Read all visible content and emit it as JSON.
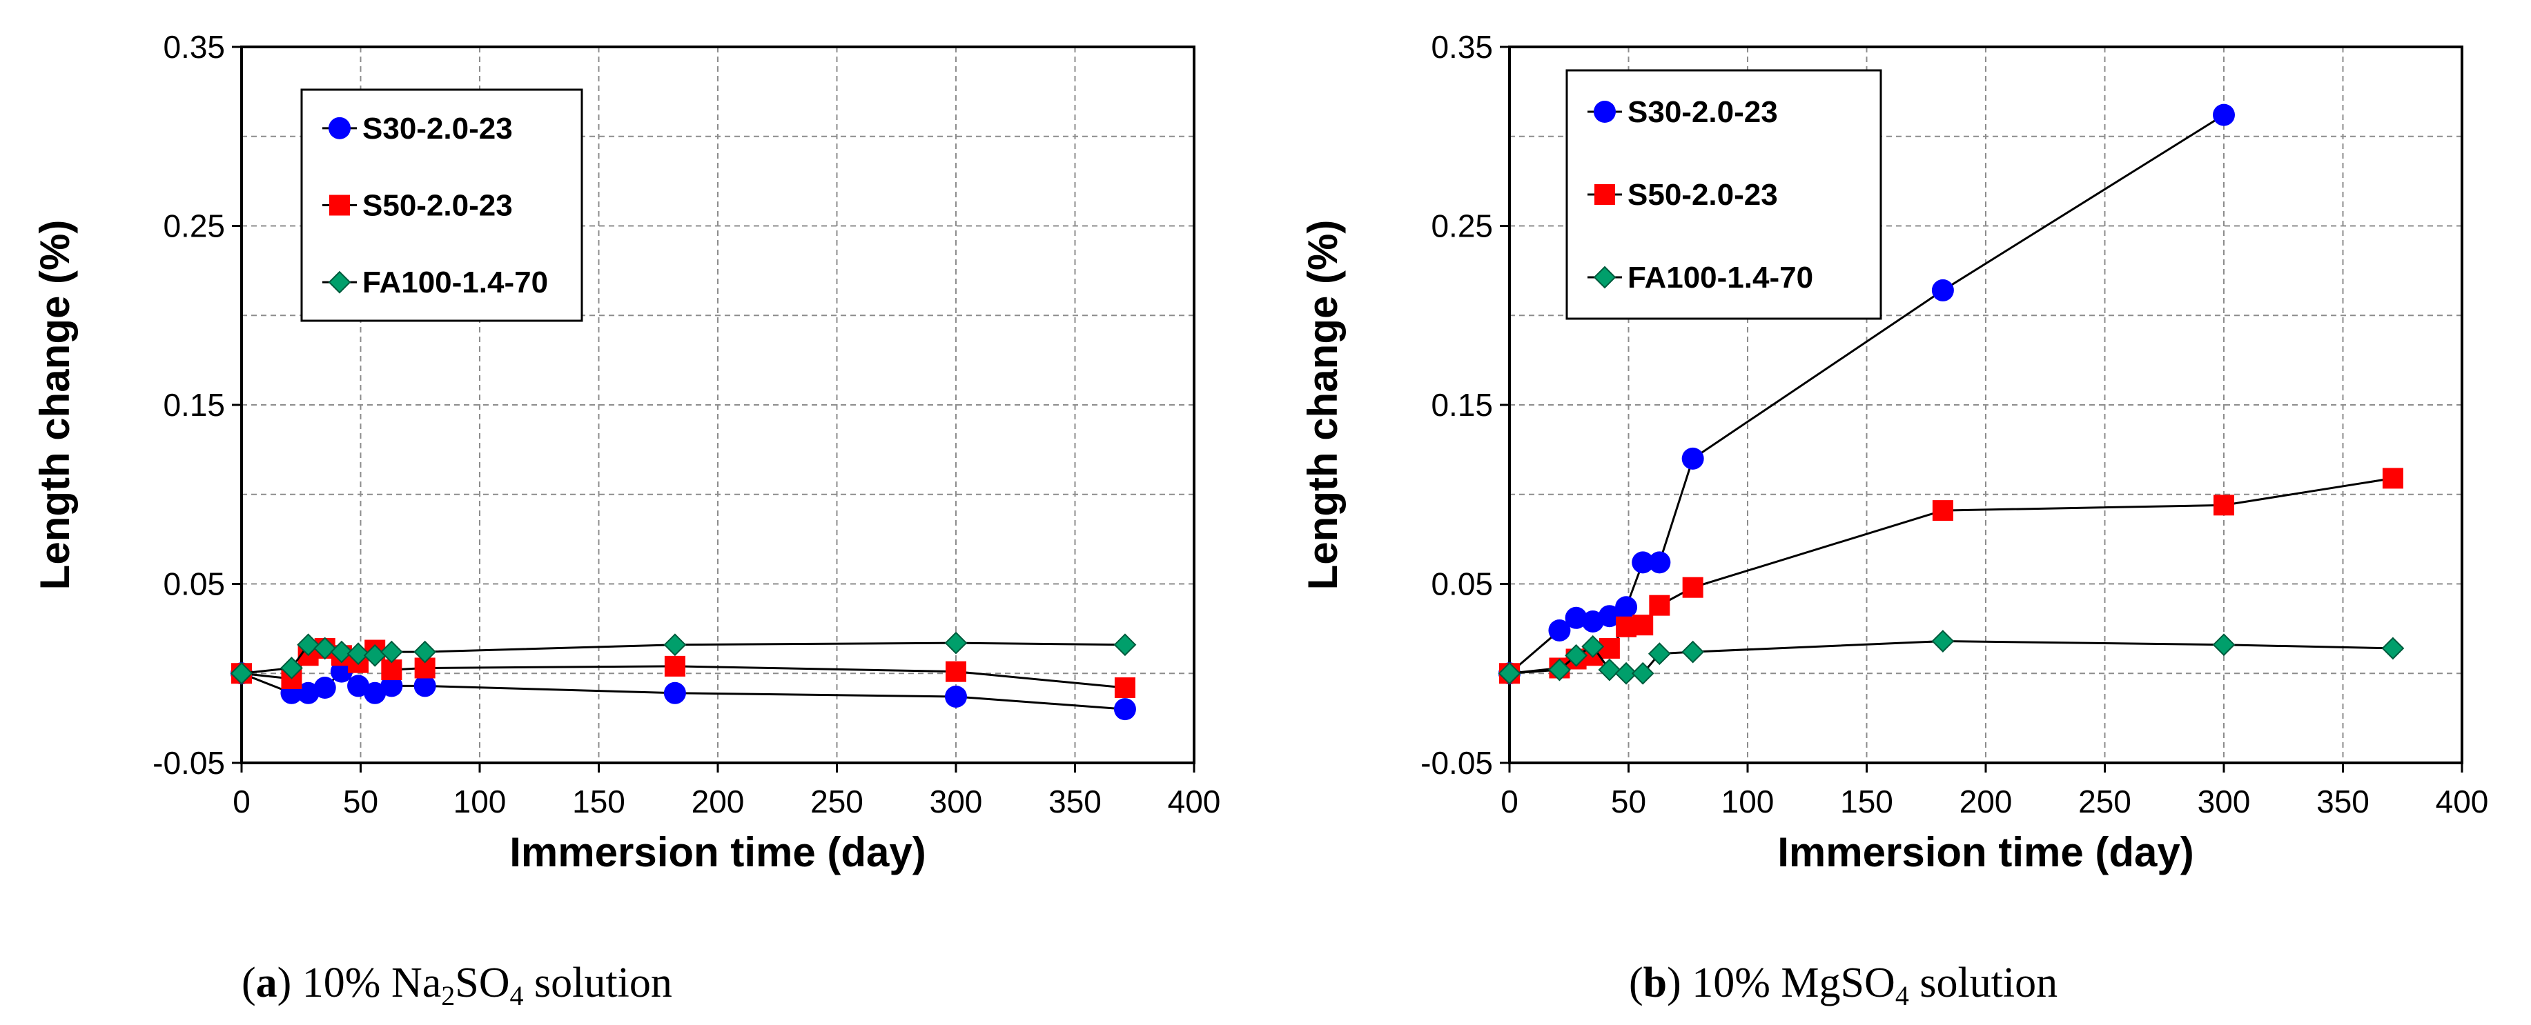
{
  "chart_data": [
    {
      "type": "line",
      "caption": {
        "label": "a",
        "text_before": "10% Na",
        "sub1": "2",
        "mid": "SO",
        "sub2": "4",
        "text_after": " solution"
      },
      "xlabel": "Immersion time (day)",
      "ylabel": "Length change (%)",
      "xlim": [
        0,
        400
      ],
      "ylim": [
        -0.05,
        0.35
      ],
      "xticks": [
        0,
        50,
        100,
        150,
        200,
        250,
        300,
        350,
        400
      ],
      "yticks": [
        -0.05,
        0.05,
        0.15,
        0.25,
        0.35
      ],
      "ytick_labels": [
        "-0.05",
        "0.05",
        "0.15",
        "0.25",
        "0.35"
      ],
      "grid": true,
      "legend_position": "top-left",
      "series": [
        {
          "name": "S30-2.0-23",
          "color": "#0000ff",
          "marker": "circle",
          "x": [
            0,
            21,
            28,
            35,
            42,
            49,
            56,
            63,
            77,
            182,
            300,
            371
          ],
          "y": [
            0.0,
            -0.011,
            -0.011,
            -0.008,
            0.001,
            -0.007,
            -0.011,
            -0.007,
            -0.007,
            -0.011,
            -0.013,
            -0.02
          ]
        },
        {
          "name": "S50-2.0-23",
          "color": "#ff0000",
          "marker": "square",
          "x": [
            0,
            21,
            28,
            35,
            42,
            49,
            56,
            63,
            77,
            182,
            300,
            371
          ],
          "y": [
            0.0,
            -0.003,
            0.01,
            0.014,
            0.01,
            0.006,
            0.013,
            0.002,
            0.003,
            0.004,
            0.001,
            -0.008
          ]
        },
        {
          "name": "FA100-1.4-70",
          "color": "#009f6b",
          "marker": "diamond",
          "x": [
            0,
            21,
            28,
            35,
            42,
            49,
            56,
            63,
            77,
            182,
            300,
            371
          ],
          "y": [
            0.0,
            0.003,
            0.016,
            0.014,
            0.012,
            0.011,
            0.01,
            0.012,
            0.012,
            0.016,
            0.017,
            0.016
          ]
        }
      ]
    },
    {
      "type": "line",
      "caption": {
        "label": "b",
        "text_before": "10% MgSO",
        "sub1": "",
        "mid": "",
        "sub2": "4",
        "text_after": " solution"
      },
      "xlabel": "Immersion time (day)",
      "ylabel": "Length change (%)",
      "xlim": [
        0,
        400
      ],
      "ylim": [
        -0.05,
        0.35
      ],
      "xticks": [
        0,
        50,
        100,
        150,
        200,
        250,
        300,
        350,
        400
      ],
      "yticks": [
        -0.05,
        0.05,
        0.15,
        0.25,
        0.35
      ],
      "ytick_labels": [
        "-0.05",
        "0.05",
        "0.15",
        "0.25",
        "0.35"
      ],
      "grid": true,
      "legend_position": "top-left",
      "series": [
        {
          "name": "S30-2.0-23",
          "color": "#0000ff",
          "marker": "circle",
          "x": [
            0,
            21,
            28,
            35,
            42,
            49,
            56,
            63,
            77,
            182,
            300
          ],
          "y": [
            0.0,
            0.024,
            0.031,
            0.029,
            0.032,
            0.037,
            0.062,
            0.062,
            0.12,
            0.214,
            0.312
          ]
        },
        {
          "name": "S50-2.0-23",
          "color": "#ff0000",
          "marker": "square",
          "x": [
            0,
            21,
            28,
            35,
            42,
            49,
            56,
            63,
            77,
            182,
            300,
            371
          ],
          "y": [
            0.0,
            0.003,
            0.008,
            0.01,
            0.014,
            0.026,
            0.027,
            0.038,
            0.048,
            0.091,
            0.094,
            0.109
          ]
        },
        {
          "name": "FA100-1.4-70",
          "color": "#009f6b",
          "marker": "diamond",
          "x": [
            0,
            21,
            28,
            35,
            42,
            49,
            56,
            63,
            77,
            182,
            300,
            371
          ],
          "y": [
            0.0,
            0.002,
            0.01,
            0.015,
            0.002,
            0.0,
            0.0,
            0.011,
            0.012,
            0.018,
            0.016,
            0.014
          ]
        }
      ]
    }
  ]
}
